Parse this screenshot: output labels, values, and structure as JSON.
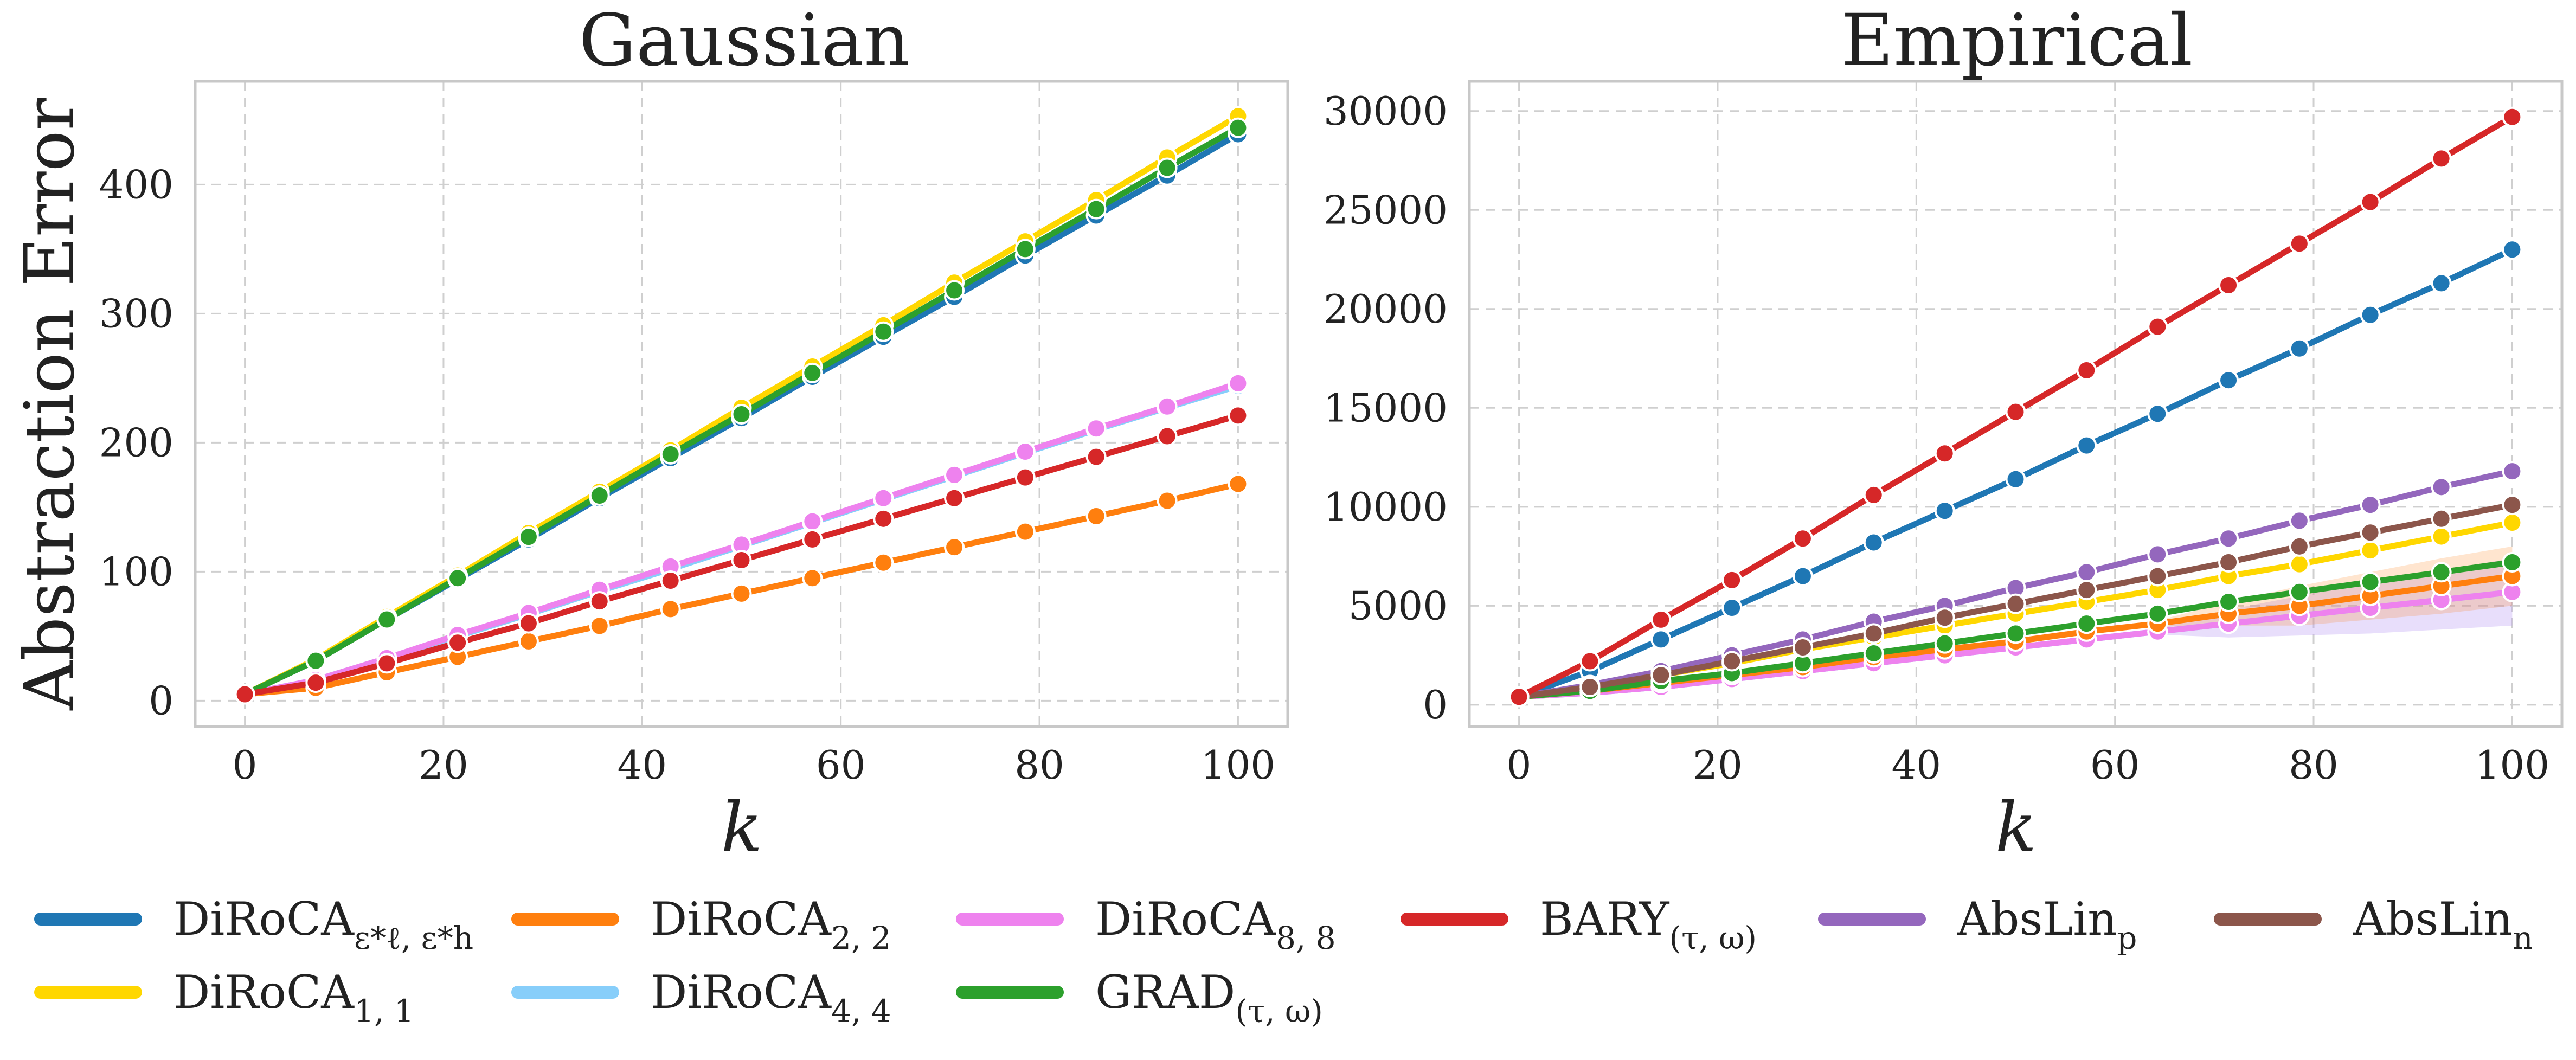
{
  "figure": {
    "ylabel": "Abstraction Error"
  },
  "colors": {
    "diroca_eps": "#1f77b4",
    "diroca_11": "#ffd700",
    "diroca_22": "#ff7f0e",
    "diroca_44": "#87cefa",
    "diroca_88": "#ee82ee",
    "grad": "#2ca02c",
    "bary": "#d62728",
    "abslin_p": "#9467bd",
    "abslin_n": "#8c564b"
  },
  "legend": [
    {
      "key": "diroca_eps",
      "base": "DiRoCA",
      "sub": "ε*ℓ, ε*h"
    },
    {
      "key": "diroca_22",
      "base": "DiRoCA",
      "sub": "2, 2"
    },
    {
      "key": "diroca_88",
      "base": "DiRoCA",
      "sub": "8, 8"
    },
    {
      "key": "bary",
      "base": "BARY",
      "sub": "(τ, ω)"
    },
    {
      "key": "abslin_p",
      "base": "AbsLin",
      "sub": "p"
    },
    {
      "key": "abslin_n",
      "base": "AbsLin",
      "sub": "n"
    },
    {
      "key": "diroca_11",
      "base": "DiRoCA",
      "sub": "1, 1"
    },
    {
      "key": "diroca_44",
      "base": "DiRoCA",
      "sub": "4, 4"
    },
    {
      "key": "grad",
      "base": "GRAD",
      "sub": "(τ, ω)"
    }
  ],
  "chart_data": [
    {
      "type": "line",
      "title": "Gaussian",
      "xlabel": "k",
      "ylabel": "Abstraction Error",
      "xlim": [
        -5,
        105
      ],
      "ylim": [
        -20,
        480
      ],
      "xticks": [
        0,
        20,
        40,
        60,
        80,
        100
      ],
      "yticks": [
        0,
        100,
        200,
        300,
        400
      ],
      "grid": true,
      "x": [
        0,
        7.14,
        14.29,
        21.43,
        28.57,
        35.71,
        42.86,
        50,
        57.14,
        64.29,
        71.43,
        78.57,
        85.71,
        92.86,
        100
      ],
      "series": [
        {
          "name": "DiRoCA_{ε*ℓ,ε*h}",
          "key": "diroca_eps",
          "values": [
            5,
            31,
            63,
            94,
            125,
            157,
            188,
            219,
            251,
            282,
            313,
            345,
            376,
            407,
            439
          ]
        },
        {
          "name": "DiRoCA_{1,1}",
          "key": "diroca_11",
          "values": [
            5,
            32,
            65,
            97,
            130,
            162,
            194,
            227,
            259,
            291,
            324,
            356,
            388,
            421,
            453
          ]
        },
        {
          "name": "DiRoCA_{2,2}",
          "key": "diroca_22",
          "values": [
            5,
            10,
            22,
            34,
            46,
            58,
            71,
            83,
            95,
            107,
            119,
            131,
            143,
            155,
            168
          ]
        },
        {
          "name": "DiRoCA_{4,4}",
          "key": "diroca_44",
          "values": [
            5,
            16,
            33,
            50,
            67,
            85,
            102,
            120,
            138,
            156,
            174,
            192,
            210,
            227,
            244
          ]
        },
        {
          "name": "DiRoCA_{8,8}",
          "key": "diroca_88",
          "values": [
            5,
            16,
            33,
            51,
            68,
            86,
            104,
            121,
            139,
            157,
            175,
            193,
            211,
            228,
            246
          ]
        },
        {
          "name": "BARY_{(τ,ω)}",
          "key": "bary",
          "values": [
            5,
            14,
            29,
            45,
            60,
            77,
            93,
            109,
            125,
            141,
            157,
            173,
            189,
            205,
            221
          ]
        },
        {
          "name": "GRAD_{(τ,ω)}",
          "key": "grad",
          "values": [
            5,
            31,
            63,
            95,
            127,
            159,
            191,
            222,
            254,
            286,
            318,
            350,
            381,
            413,
            444
          ]
        }
      ]
    },
    {
      "type": "line",
      "title": "Empirical",
      "xlabel": "k",
      "ylabel": "",
      "xlim": [
        -5,
        105
      ],
      "ylim": [
        -1100,
        31500
      ],
      "xticks": [
        0,
        20,
        40,
        60,
        80,
        100
      ],
      "yticks": [
        0,
        5000,
        10000,
        15000,
        20000,
        25000,
        30000
      ],
      "grid": true,
      "x": [
        0,
        7.14,
        14.29,
        21.43,
        28.57,
        35.71,
        42.86,
        50,
        57.14,
        64.29,
        71.43,
        78.57,
        85.71,
        92.86,
        100
      ],
      "series": [
        {
          "name": "DiRoCA_{ε*ℓ,ε*h}",
          "key": "diroca_eps",
          "values": [
            400,
            1700,
            3300,
            4900,
            6500,
            8200,
            9800,
            11400,
            13100,
            14700,
            16400,
            18000,
            19700,
            21300,
            23000
          ]
        },
        {
          "name": "DiRoCA_{1,1}",
          "key": "diroca_11",
          "values": [
            400,
            900,
            1500,
            2100,
            2800,
            3400,
            4000,
            4600,
            5200,
            5800,
            6500,
            7100,
            7800,
            8500,
            9200
          ]
        },
        {
          "name": "DiRoCA_{2,2}",
          "key": "diroca_22",
          "values": [
            400,
            700,
            1100,
            1500,
            1900,
            2400,
            2800,
            3200,
            3700,
            4100,
            4600,
            5000,
            5500,
            6000,
            6500
          ],
          "band": [
            600,
            1000,
            1200,
            1400,
            1500
          ]
        },
        {
          "name": "DiRoCA_{4,4}",
          "key": "diroca_44",
          "values": [
            400,
            600,
            900,
            1300,
            1700,
            2100,
            2500,
            2900,
            3300,
            3700,
            4100,
            4500,
            4900,
            5300,
            5700
          ],
          "band": [
            700,
            1000,
            1300,
            1500,
            1700
          ]
        },
        {
          "name": "DiRoCA_{8,8}",
          "key": "diroca_88",
          "values": [
            400,
            600,
            900,
            1300,
            1700,
            2100,
            2500,
            2900,
            3300,
            3700,
            4100,
            4500,
            4900,
            5300,
            5700
          ],
          "band": [
            700,
            1000,
            1300,
            1500,
            1700
          ]
        },
        {
          "name": "BARY_{(τ,ω)}",
          "key": "bary",
          "values": [
            400,
            2200,
            4300,
            6300,
            8400,
            10600,
            12700,
            14800,
            16900,
            19100,
            21200,
            23300,
            25400,
            27600,
            29700
          ]
        },
        {
          "name": "GRAD_{(τ,ω)}",
          "key": "grad",
          "values": [
            400,
            700,
            1200,
            1600,
            2100,
            2600,
            3100,
            3600,
            4100,
            4600,
            5200,
            5700,
            6200,
            6700,
            7200
          ]
        },
        {
          "name": "AbsLin_p",
          "key": "abslin_p",
          "values": [
            400,
            1000,
            1700,
            2500,
            3300,
            4200,
            5000,
            5900,
            6700,
            7600,
            8400,
            9300,
            10100,
            11000,
            11800
          ]
        },
        {
          "name": "AbsLin_n",
          "key": "abslin_n",
          "values": [
            400,
            900,
            1500,
            2200,
            2900,
            3600,
            4400,
            5100,
            5800,
            6500,
            7200,
            8000,
            8700,
            9400,
            10100
          ]
        }
      ]
    }
  ]
}
